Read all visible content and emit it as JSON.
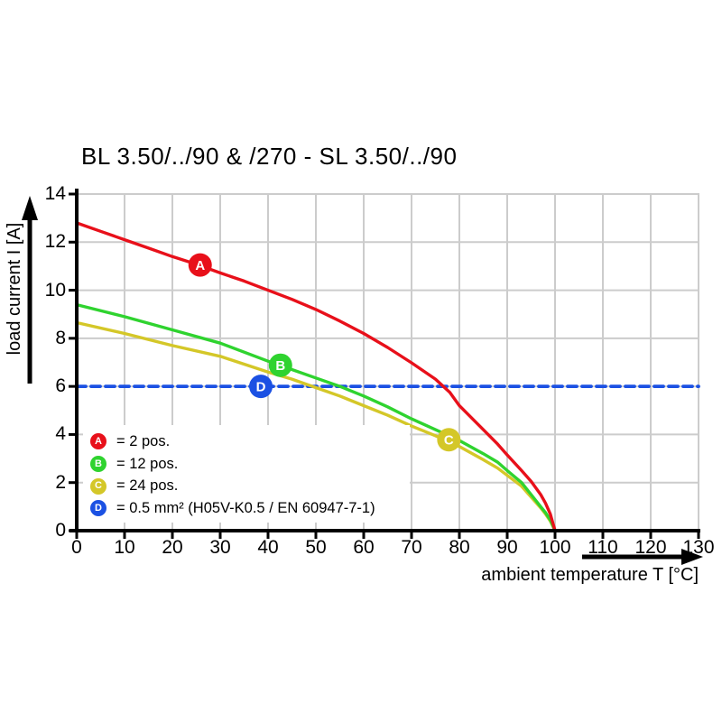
{
  "page": {
    "background": "#ffffff"
  },
  "chart_data": {
    "type": "line",
    "title": "BL 3.50/../90 & /270 - SL 3.50/../90",
    "xlabel": "ambient temperature T [°C]",
    "ylabel": "load current I [A]",
    "xlim": [
      0,
      130
    ],
    "ylim": [
      0,
      14
    ],
    "xticks": [
      0,
      10,
      20,
      30,
      40,
      50,
      60,
      70,
      80,
      90,
      100,
      110,
      120,
      130
    ],
    "yticks": [
      0,
      2,
      4,
      6,
      8,
      10,
      12,
      14
    ],
    "grid": true,
    "grid_color": "#cccccc",
    "axis_color": "#000000",
    "series": [
      {
        "name": "A",
        "label": "= 2 pos.",
        "color": "#e8101a",
        "style": "solid",
        "points": [
          [
            0,
            12.8
          ],
          [
            5,
            12.45
          ],
          [
            10,
            12.1
          ],
          [
            15,
            11.75
          ],
          [
            20,
            11.4
          ],
          [
            25,
            11.08
          ],
          [
            30,
            10.72
          ],
          [
            35,
            10.38
          ],
          [
            40,
            10.0
          ],
          [
            45,
            9.62
          ],
          [
            50,
            9.2
          ],
          [
            55,
            8.72
          ],
          [
            60,
            8.2
          ],
          [
            65,
            7.62
          ],
          [
            70,
            6.98
          ],
          [
            75,
            6.3
          ],
          [
            78,
            5.75
          ],
          [
            80,
            5.2
          ],
          [
            83,
            4.6
          ],
          [
            85,
            4.2
          ],
          [
            88,
            3.6
          ],
          [
            90,
            3.15
          ],
          [
            93,
            2.5
          ],
          [
            95,
            2.05
          ],
          [
            97,
            1.5
          ],
          [
            98,
            1.15
          ],
          [
            99,
            0.7
          ],
          [
            100,
            0
          ]
        ]
      },
      {
        "name": "B",
        "label": "= 12 pos.",
        "color": "#2fd32f",
        "style": "solid",
        "points": [
          [
            0,
            9.4
          ],
          [
            10,
            8.9
          ],
          [
            20,
            8.35
          ],
          [
            30,
            7.8
          ],
          [
            40,
            7.05
          ],
          [
            45,
            6.7
          ],
          [
            50,
            6.35
          ],
          [
            55,
            6.0
          ],
          [
            60,
            5.6
          ],
          [
            65,
            5.15
          ],
          [
            70,
            4.65
          ],
          [
            75,
            4.2
          ],
          [
            80,
            3.75
          ],
          [
            85,
            3.2
          ],
          [
            88,
            2.85
          ],
          [
            90,
            2.5
          ],
          [
            93,
            2.0
          ],
          [
            95,
            1.5
          ],
          [
            97,
            1.0
          ],
          [
            98,
            0.75
          ],
          [
            99,
            0.45
          ],
          [
            100,
            0
          ]
        ]
      },
      {
        "name": "C",
        "label": "= 24 pos.",
        "color": "#d4c728",
        "style": "solid",
        "points": [
          [
            0,
            8.65
          ],
          [
            10,
            8.2
          ],
          [
            20,
            7.7
          ],
          [
            30,
            7.25
          ],
          [
            40,
            6.6
          ],
          [
            45,
            6.3
          ],
          [
            50,
            5.95
          ],
          [
            55,
            5.6
          ],
          [
            60,
            5.2
          ],
          [
            65,
            4.8
          ],
          [
            70,
            4.35
          ],
          [
            75,
            3.95
          ],
          [
            80,
            3.5
          ],
          [
            85,
            2.95
          ],
          [
            88,
            2.6
          ],
          [
            90,
            2.3
          ],
          [
            93,
            1.85
          ],
          [
            95,
            1.4
          ],
          [
            97,
            0.95
          ],
          [
            98,
            0.7
          ],
          [
            99,
            0.4
          ],
          [
            100,
            0
          ]
        ]
      },
      {
        "name": "D",
        "label": "= 0.5 mm² (H05V-K0.5 / EN 60947-7-1)",
        "color": "#1b51e3",
        "style": "dashed",
        "points": [
          [
            0,
            6
          ],
          [
            130,
            6
          ]
        ]
      }
    ],
    "markers": [
      {
        "letter": "A",
        "x": 25.8,
        "y": 11.05,
        "color": "#e8101a"
      },
      {
        "letter": "B",
        "x": 42.6,
        "y": 6.88,
        "color": "#2fd32f"
      },
      {
        "letter": "C",
        "x": 77.8,
        "y": 3.78,
        "color": "#d4c728"
      },
      {
        "letter": "D",
        "x": 38.5,
        "y": 6.0,
        "color": "#1b51e3"
      }
    ],
    "legend_position": "lower-left-inside"
  },
  "legend": {
    "items": [
      {
        "letter": "A",
        "color": "#e8101a",
        "label": "= 2 pos."
      },
      {
        "letter": "B",
        "color": "#2fd32f",
        "label": "= 12 pos."
      },
      {
        "letter": "C",
        "color": "#d4c728",
        "label": "= 24 pos."
      },
      {
        "letter": "D",
        "color": "#1b51e3",
        "label": "= 0.5 mm² (H05V-K0.5 / EN 60947-7-1)"
      }
    ]
  }
}
